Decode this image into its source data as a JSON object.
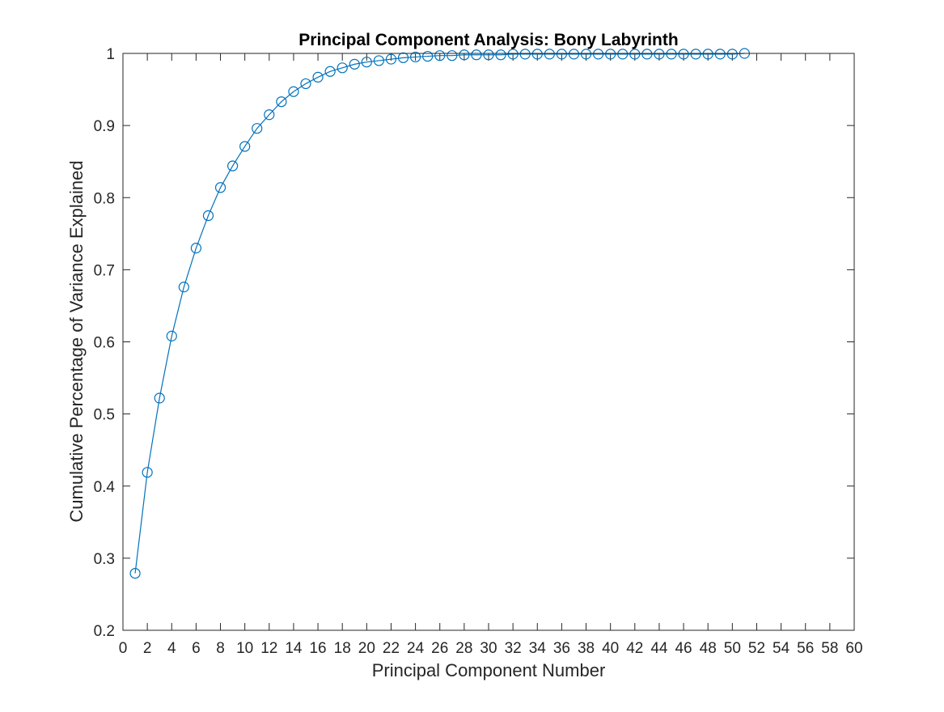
{
  "chart_data": {
    "type": "line",
    "title": "Principal Component Analysis: Bony Labyrinth",
    "xlabel": "Principal Component Number",
    "ylabel": "Cumulative Percentage of Variance Explained",
    "xlim": [
      0,
      60
    ],
    "ylim": [
      0.2,
      1
    ],
    "xticks": [
      0,
      2,
      4,
      6,
      8,
      10,
      12,
      14,
      16,
      18,
      20,
      22,
      24,
      26,
      28,
      30,
      32,
      34,
      36,
      38,
      40,
      42,
      44,
      46,
      48,
      50,
      52,
      54,
      56,
      58,
      60
    ],
    "yticks": [
      0.2,
      0.3,
      0.4,
      0.5,
      0.6,
      0.7,
      0.8,
      0.9,
      1
    ],
    "ytick_labels": [
      "0.2",
      "0.3",
      "0.4",
      "0.5",
      "0.6",
      "0.7",
      "0.8",
      "0.9",
      "1"
    ],
    "grid": false,
    "legend": "none",
    "marker": "circle-open",
    "series": [
      {
        "color": "#0072BD",
        "x": [
          1,
          2,
          3,
          4,
          5,
          6,
          7,
          8,
          9,
          10,
          11,
          12,
          13,
          14,
          15,
          16,
          17,
          18,
          19,
          20,
          21,
          22,
          23,
          24,
          25,
          26,
          27,
          28,
          29,
          30,
          31,
          32,
          33,
          34,
          35,
          36,
          37,
          38,
          39,
          40,
          41,
          42,
          43,
          44,
          45,
          46,
          47,
          48,
          49,
          50,
          51
        ],
        "y": [
          0.279,
          0.419,
          0.522,
          0.608,
          0.676,
          0.73,
          0.775,
          0.814,
          0.844,
          0.871,
          0.896,
          0.915,
          0.933,
          0.947,
          0.958,
          0.967,
          0.975,
          0.98,
          0.985,
          0.988,
          0.99,
          0.992,
          0.994,
          0.995,
          0.996,
          0.997,
          0.997,
          0.998,
          0.998,
          0.998,
          0.998,
          0.999,
          0.999,
          0.999,
          0.999,
          0.999,
          0.999,
          0.999,
          0.999,
          0.999,
          0.999,
          0.999,
          0.999,
          0.999,
          0.999,
          0.999,
          0.999,
          0.999,
          0.999,
          0.999,
          1.0
        ]
      }
    ]
  }
}
